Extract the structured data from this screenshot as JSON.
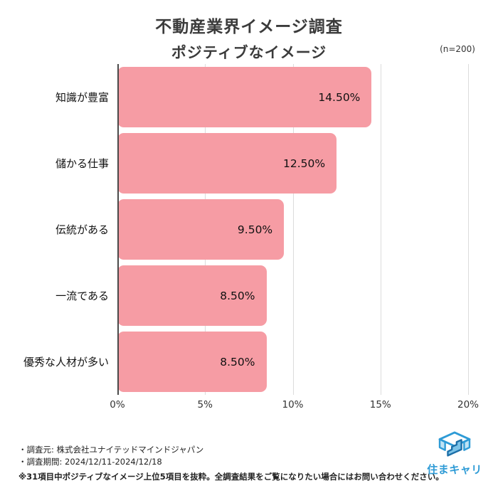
{
  "header": {
    "title": "不動産業界イメージ調査",
    "subtitle": "ポジティブなイメージ",
    "sample_note": "(n=200)"
  },
  "chart_data": {
    "type": "bar",
    "orientation": "horizontal",
    "title": "不動産業界イメージ調査 ポジティブなイメージ",
    "categories": [
      "知識が豊富",
      "儲かる仕事",
      "伝統がある",
      "一流である",
      "優秀な人材が多い"
    ],
    "values": [
      14.5,
      12.5,
      9.5,
      8.5,
      8.5
    ],
    "value_labels": [
      "14.50%",
      "12.50%",
      "9.50%",
      "8.50%",
      "8.50%"
    ],
    "xlim": [
      0,
      20
    ],
    "x_ticks": [
      "0%",
      "5%",
      "10%",
      "15%",
      "20%"
    ],
    "bar_color": "#F69CA4",
    "grid": true,
    "legend": "none"
  },
  "footer": {
    "source": "・調査元: 株式会社ユナイテッドマインドジャパン",
    "period": "・調査期間: 2024/12/11-2024/12/18",
    "note": "※31項目中ポジティブなイメージ上位5項目を抜粋。全調査結果をご覧になりたい場合にはお問い合わせください。"
  },
  "logo": {
    "text": "住まキャリ",
    "color": "#2E9BD6"
  }
}
